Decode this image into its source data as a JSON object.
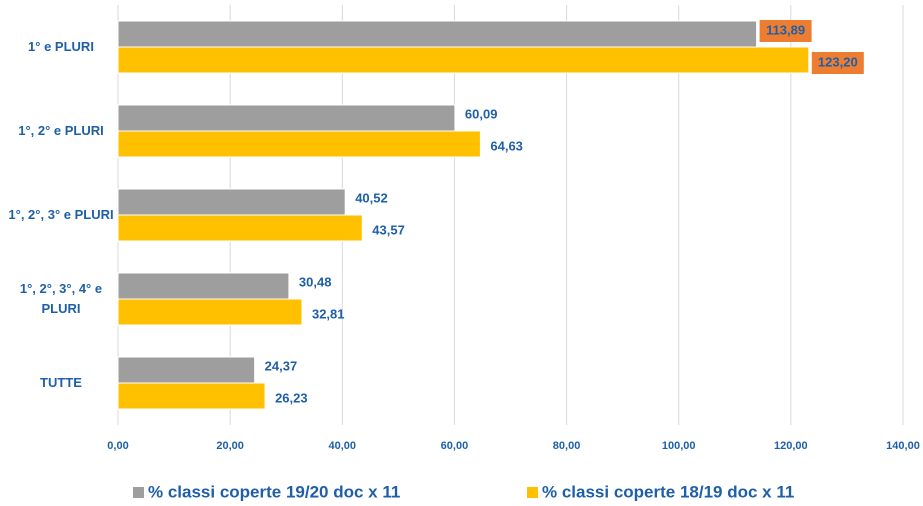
{
  "chart_data": {
    "type": "barh",
    "categories": [
      "1° e PLURI",
      "1°, 2° e PLURI",
      "1°, 2°, 3° e PLURI",
      "1°, 2°, 3°, 4° e PLURI",
      "TUTTE"
    ],
    "series": [
      {
        "name": "% classi coperte 19/20 doc x 11",
        "color": "#9e9e9e",
        "values": [
          113.89,
          60.09,
          40.52,
          30.48,
          24.37
        ],
        "value_labels": [
          "113,89",
          "60,09",
          "40,52",
          "30,48",
          "24,37"
        ]
      },
      {
        "name": "% classi coperte 18/19 doc x 11",
        "color": "#ffc000",
        "values": [
          123.2,
          64.63,
          43.57,
          32.81,
          26.23
        ],
        "value_labels": [
          "123,20",
          "64,63",
          "43,57",
          "32,81",
          "26,23"
        ]
      }
    ],
    "xlim": [
      0,
      140
    ],
    "xticks": [
      {
        "value": 0,
        "label": "0,00"
      },
      {
        "value": 20,
        "label": "20,00"
      },
      {
        "value": 40,
        "label": "40,00"
      },
      {
        "value": 60,
        "label": "60,00"
      },
      {
        "value": 80,
        "label": "80,00"
      },
      {
        "value": 100,
        "label": "100,00"
      },
      {
        "value": 120,
        "label": "120,00"
      },
      {
        "value": 140,
        "label": "140,00"
      }
    ],
    "grid": true,
    "legend": "bottom"
  }
}
